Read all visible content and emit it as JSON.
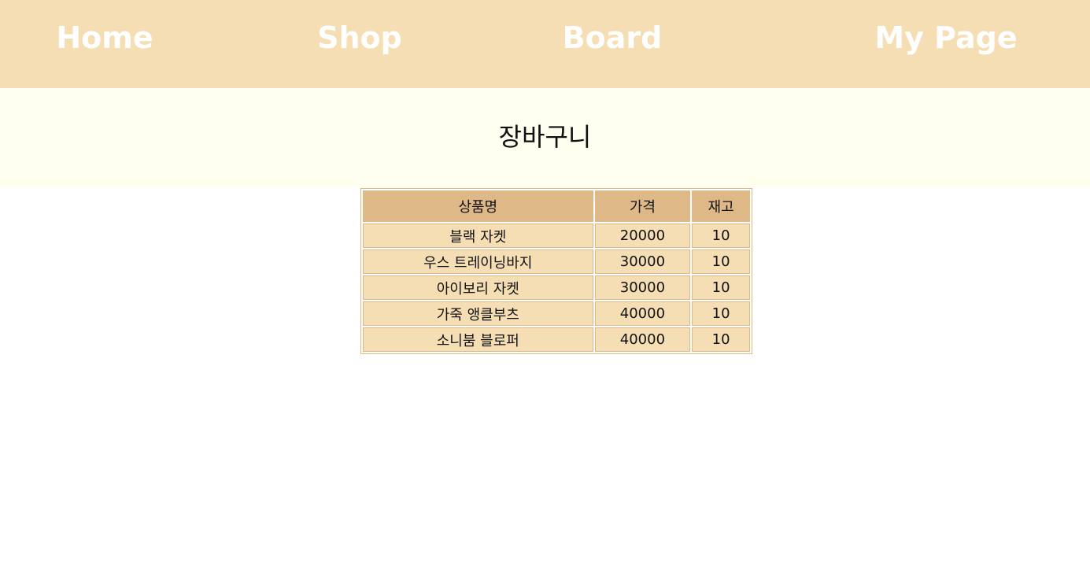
{
  "nav": {
    "home": "Home",
    "shop": "Shop",
    "board": "Board",
    "mypage": "My Page"
  },
  "page_title": "장바구니",
  "table": {
    "headers": {
      "name": "상품명",
      "price": "가격",
      "stock": "재고"
    },
    "rows": [
      {
        "name": "블랙 자켓",
        "price": "20000",
        "stock": "10"
      },
      {
        "name": "우스 트레이닝바지",
        "price": "30000",
        "stock": "10"
      },
      {
        "name": "아이보리 자켓",
        "price": "30000",
        "stock": "10"
      },
      {
        "name": "가죽 앵클부츠",
        "price": "40000",
        "stock": "10"
      },
      {
        "name": "소니붐 블로퍼",
        "price": "40000",
        "stock": "10"
      }
    ]
  },
  "colors": {
    "nav_bg": "#f5deb3",
    "banner_bg": "#fffff0",
    "header_cell_bg": "#deb887",
    "body_cell_bg": "#f5deb3"
  }
}
